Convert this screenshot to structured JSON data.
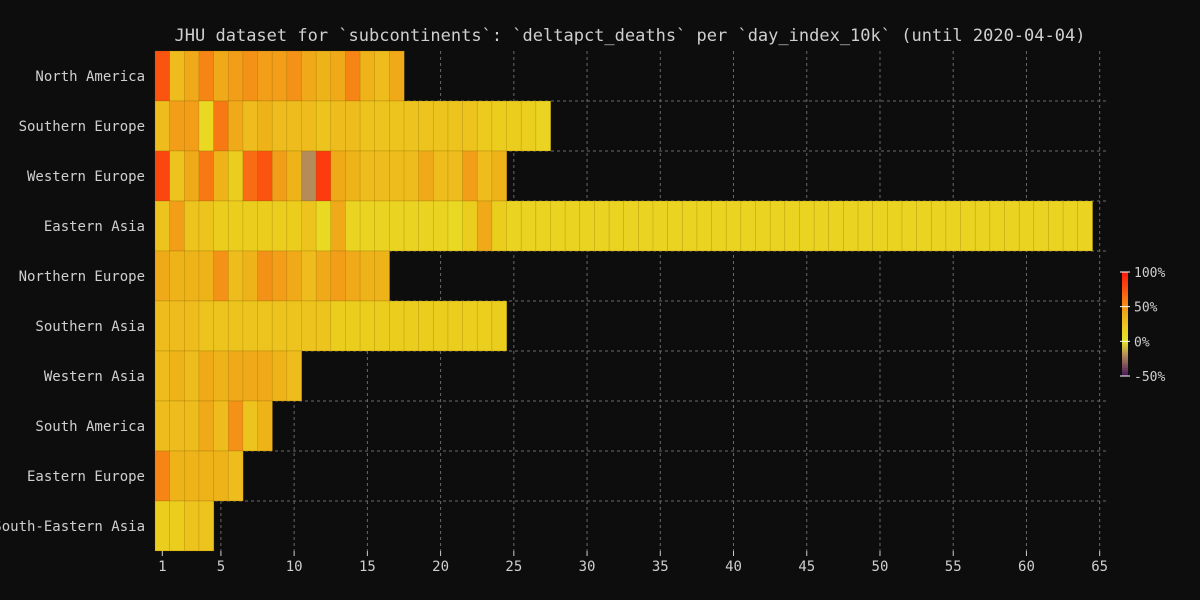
{
  "chart_data": {
    "type": "heatmap",
    "title": "JHU dataset for `subcontinents`: `deltapct_deaths` per `day_index_10k` (until 2020-04-04)",
    "xlabel": "",
    "ylabel": "",
    "x_range": [
      1,
      65
    ],
    "x_ticks": [
      "1",
      "5",
      "10",
      "15",
      "20",
      "25",
      "30",
      "35",
      "40",
      "45",
      "50",
      "55",
      "60",
      "65"
    ],
    "grid": true,
    "colorbar": {
      "range": [
        -50,
        100
      ],
      "ticks": [
        {
          "value": 100,
          "label": "100%"
        },
        {
          "value": 50,
          "label": "50%"
        },
        {
          "value": 0,
          "label": "0%"
        },
        {
          "value": -50,
          "label": "-50%"
        }
      ]
    },
    "series": [
      {
        "name": "North America",
        "values": [
          75,
          30,
          40,
          55,
          40,
          45,
          50,
          45,
          45,
          50,
          40,
          35,
          40,
          55,
          35,
          30,
          40
        ]
      },
      {
        "name": "Southern Europe",
        "values": [
          30,
          45,
          45,
          10,
          60,
          40,
          30,
          35,
          30,
          30,
          30,
          25,
          30,
          30,
          25,
          25,
          25,
          25,
          25,
          25,
          25,
          25,
          22,
          20,
          20,
          18,
          15
        ]
      },
      {
        "name": "Western Europe",
        "values": [
          80,
          25,
          40,
          60,
          35,
          20,
          65,
          75,
          45,
          35,
          -20,
          85,
          40,
          35,
          30,
          30,
          30,
          30,
          40,
          30,
          30,
          45,
          30,
          35
        ]
      },
      {
        "name": "Eastern Asia",
        "values": [
          25,
          45,
          25,
          25,
          20,
          20,
          20,
          20,
          20,
          20,
          25,
          10,
          40,
          15,
          15,
          15,
          15,
          15,
          15,
          15,
          10,
          20,
          40,
          20,
          15,
          15,
          15,
          15,
          15,
          15,
          15,
          15,
          15,
          15,
          15,
          15,
          15,
          15,
          15,
          15,
          15,
          15,
          15,
          15,
          15,
          15,
          15,
          15,
          15,
          15,
          15,
          15,
          15,
          15,
          15,
          15,
          15,
          15,
          15,
          15,
          15,
          15,
          15,
          15
        ]
      },
      {
        "name": "Northern Europe",
        "values": [
          40,
          35,
          35,
          35,
          50,
          30,
          35,
          50,
          45,
          40,
          30,
          40,
          45,
          40,
          35,
          35
        ]
      },
      {
        "name": "Southern Asia",
        "values": [
          30,
          30,
          30,
          25,
          25,
          25,
          25,
          25,
          25,
          25,
          25,
          25,
          20,
          20,
          20,
          20,
          20,
          20,
          20,
          20,
          20,
          18,
          18,
          20
        ]
      },
      {
        "name": "Western Asia",
        "values": [
          30,
          35,
          30,
          40,
          35,
          40,
          40,
          40,
          35,
          30
        ]
      },
      {
        "name": "South America",
        "values": [
          30,
          30,
          30,
          40,
          30,
          50,
          25,
          35
        ]
      },
      {
        "name": "Eastern Europe",
        "values": [
          55,
          35,
          35,
          35,
          35,
          30
        ]
      },
      {
        "name": "South-Eastern Asia",
        "values": [
          20,
          20,
          25,
          25
        ]
      }
    ]
  }
}
